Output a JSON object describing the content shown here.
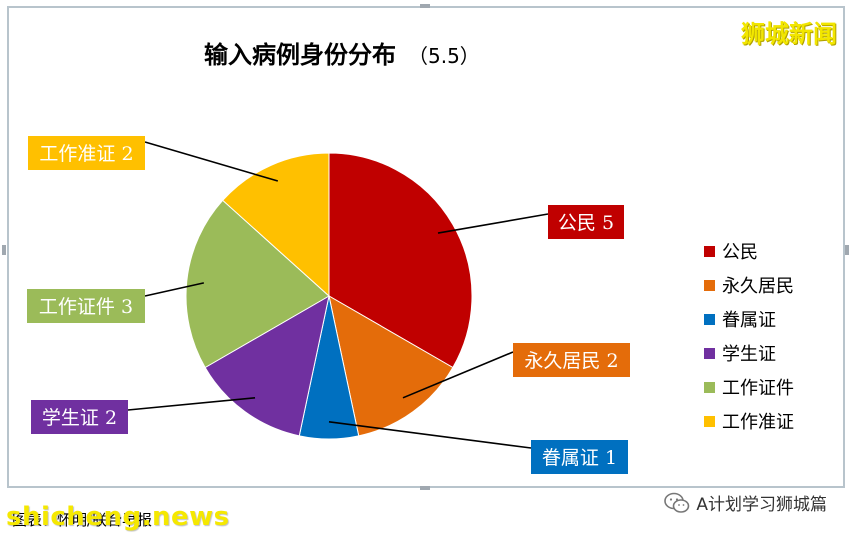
{
  "chart_data": {
    "type": "pie",
    "title": "输入病例身份分布",
    "subtitle": "（5.5）",
    "categories": [
      "公民",
      "永久居民",
      "眷属证",
      "学生证",
      "工作证件",
      "工作准证"
    ],
    "values": [
      5,
      2,
      1,
      2,
      3,
      2
    ],
    "colors": [
      "#c00000",
      "#e46c0a",
      "#0070c0",
      "#7030a0",
      "#9bbb59",
      "#ffc000"
    ],
    "data_labels": [
      "公民 5",
      "永久居民 2",
      "眷属证 1",
      "学生证 2",
      "工作证件 3",
      "工作准证 2"
    ],
    "legend": {
      "position": "right",
      "entries": [
        "公民",
        "永久居民",
        "眷属证",
        "学生证",
        "工作证件",
        "工作准证"
      ]
    }
  },
  "watermark_top": "狮城新闻",
  "caption": "图表：怀明/联合早报",
  "site_watermark": "shicheng.news",
  "wechat_label": "A计划学习狮城篇"
}
